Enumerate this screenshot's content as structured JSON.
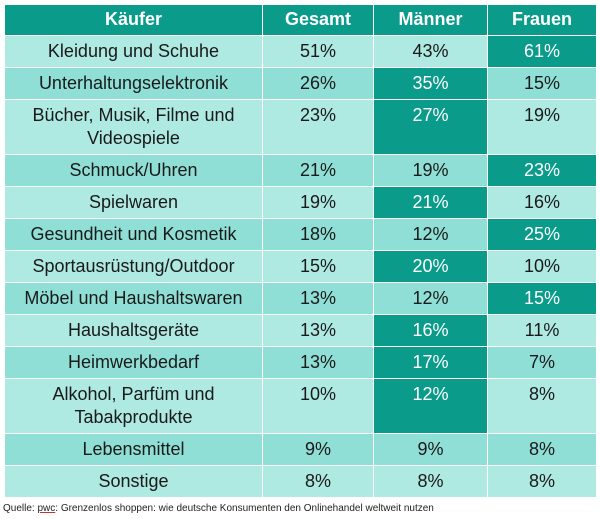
{
  "chart_data": {
    "type": "table",
    "columns": [
      "Käufer",
      "Gesamt",
      "Männer",
      "Frauen"
    ],
    "rows": [
      {
        "label": "Kleidung und Schuhe",
        "gesamt": "51%",
        "maenner": "43%",
        "frauen": "61%",
        "highlight": "frauen"
      },
      {
        "label": "Unterhaltungselektronik",
        "gesamt": "26%",
        "maenner": "35%",
        "frauen": "15%",
        "highlight": "maenner"
      },
      {
        "label": "Bücher, Musik, Filme und Videospiele",
        "gesamt": "23%",
        "maenner": "27%",
        "frauen": "19%",
        "highlight": "maenner"
      },
      {
        "label": "Schmuck/Uhren",
        "gesamt": "21%",
        "maenner": "19%",
        "frauen": "23%",
        "highlight": "frauen"
      },
      {
        "label": "Spielwaren",
        "gesamt": "19%",
        "maenner": "21%",
        "frauen": "16%",
        "highlight": "maenner"
      },
      {
        "label": "Gesundheit und Kosmetik",
        "gesamt": "18%",
        "maenner": "12%",
        "frauen": "25%",
        "highlight": "frauen"
      },
      {
        "label": "Sportausrüstung/Outdoor",
        "gesamt": "15%",
        "maenner": "20%",
        "frauen": "10%",
        "highlight": "maenner"
      },
      {
        "label": "Möbel und Haushaltswaren",
        "gesamt": "13%",
        "maenner": "12%",
        "frauen": "15%",
        "highlight": "frauen"
      },
      {
        "label": "Haushaltsgeräte",
        "gesamt": "13%",
        "maenner": "16%",
        "frauen": "11%",
        "highlight": "maenner"
      },
      {
        "label": "Heimwerkbedarf",
        "gesamt": "13%",
        "maenner": "17%",
        "frauen": "7%",
        "highlight": "maenner"
      },
      {
        "label": "Alkohol, Parfüm und Tabakprodukte",
        "gesamt": "10%",
        "maenner": "12%",
        "frauen": "8%",
        "highlight": "maenner"
      },
      {
        "label": "Lebensmittel",
        "gesamt": "9%",
        "maenner": "9%",
        "frauen": "8%",
        "highlight": ""
      },
      {
        "label": "Sonstige",
        "gesamt": "8%",
        "maenner": "8%",
        "frauen": "8%",
        "highlight": ""
      }
    ],
    "colors": {
      "header": "#0a9b8b",
      "highlight": "#0a9b8b",
      "row_light": "#aee9e2",
      "row_dark": "#8fdfd6"
    }
  },
  "source": {
    "prefix": "Quelle: ",
    "publisher": "pwc",
    "suffix": ": Grenzenlos shoppen: wie deutsche Konsumenten den Onlinehandel weltweit nutzen"
  }
}
